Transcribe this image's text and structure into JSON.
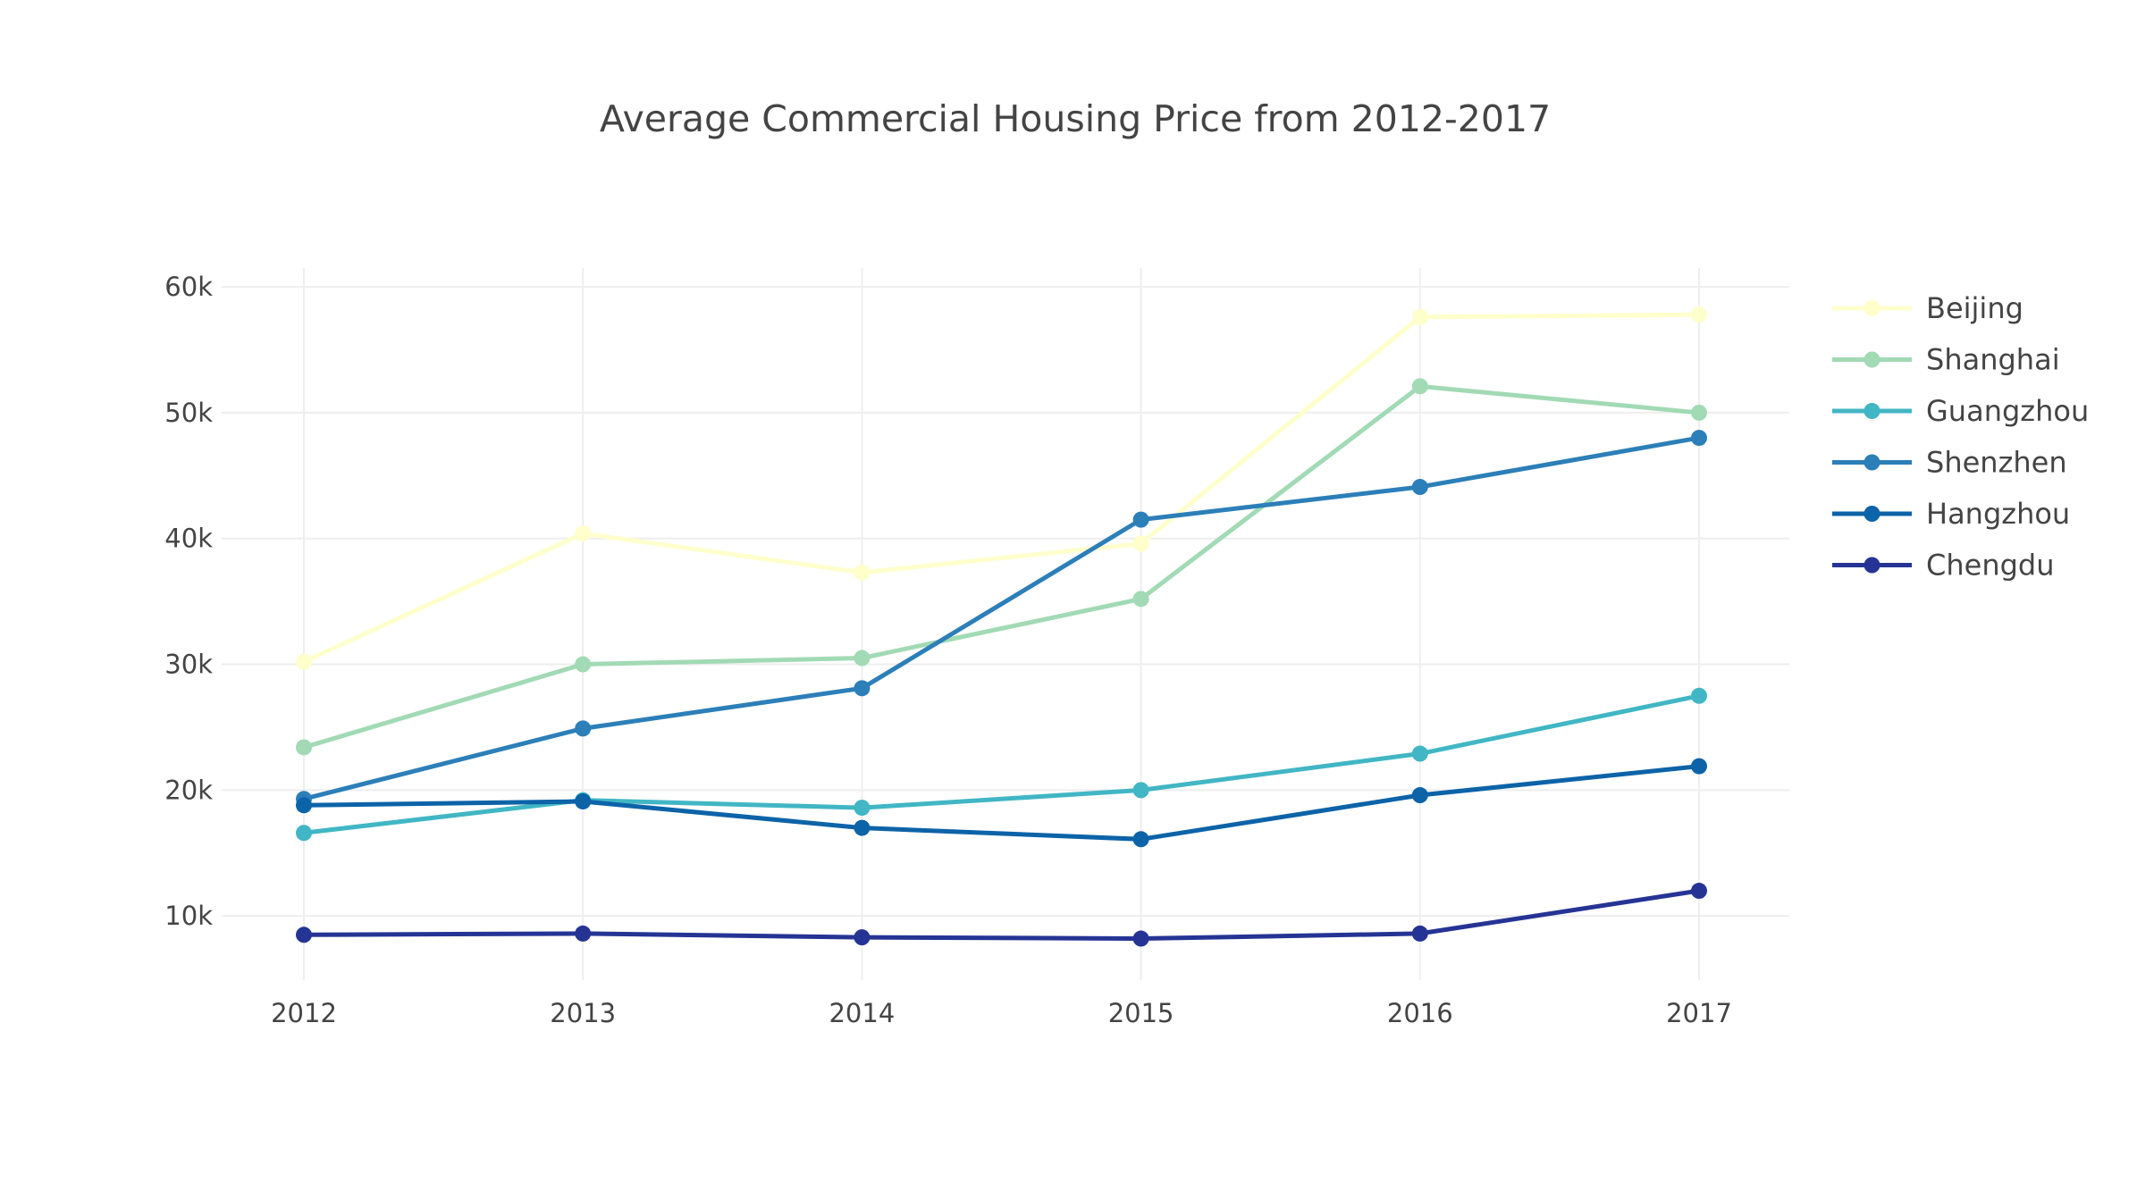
{
  "chart_data": {
    "type": "line",
    "title": "Average Commercial Housing Price from 2012-2017",
    "x": [
      "2012",
      "2013",
      "2014",
      "2015",
      "2016",
      "2017"
    ],
    "y_ticks": [
      10000,
      20000,
      30000,
      40000,
      50000,
      60000
    ],
    "y_tick_labels": [
      "10k",
      "20k",
      "30k",
      "40k",
      "50k",
      "60k"
    ],
    "ylim": [
      4900,
      61500
    ],
    "grid": true,
    "legend_position": "top-right",
    "series": [
      {
        "name": "Beijing",
        "color": "#ffffcc",
        "values": [
          30200,
          40400,
          37300,
          39600,
          57600,
          57800
        ]
      },
      {
        "name": "Shanghai",
        "color": "#a1dab4",
        "values": [
          23400,
          30000,
          30500,
          35200,
          52100,
          50000
        ]
      },
      {
        "name": "Guangzhou",
        "color": "#41b6c4",
        "values": [
          16600,
          19200,
          18600,
          20000,
          22900,
          27500
        ]
      },
      {
        "name": "Shenzhen",
        "color": "#2c7fb8",
        "values": [
          19300,
          24900,
          28100,
          41500,
          44100,
          48000
        ]
      },
      {
        "name": "Hangzhou",
        "color": "#0c63a8",
        "values": [
          18800,
          19100,
          17000,
          16100,
          19600,
          21900
        ]
      },
      {
        "name": "Chengdu",
        "color": "#253494",
        "values": [
          8500,
          8600,
          8300,
          8200,
          8600,
          12000
        ]
      }
    ]
  }
}
